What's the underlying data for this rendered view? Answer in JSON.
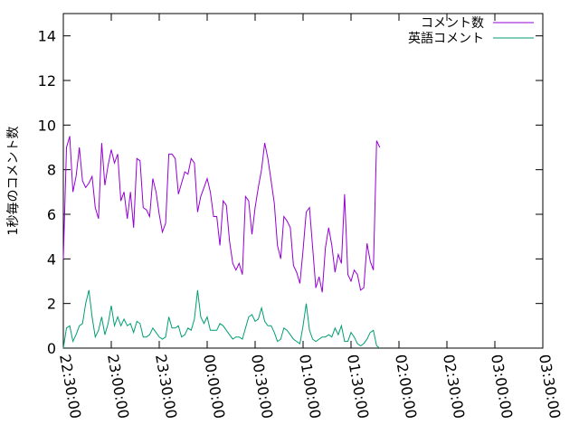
{
  "chart_data": {
    "type": "line",
    "title": "",
    "xlabel": "",
    "ylabel": "1秒毎のコメント数",
    "xlim": [
      "22:30:00",
      "03:30:00"
    ],
    "ylim": [
      0,
      15
    ],
    "yticks": [
      0,
      2,
      4,
      6,
      8,
      10,
      12,
      14
    ],
    "xticks": [
      "22:30:00",
      "23:00:00",
      "23:30:00",
      "00:00:00",
      "00:30:00",
      "01:00:00",
      "01:30:00",
      "02:00:00",
      "02:30:00",
      "03:00:00",
      "03:30:00"
    ],
    "grid": false,
    "legend_position": "top-right",
    "series": [
      {
        "name": "コメント数",
        "color": "#9400d3",
        "points": [
          [
            "22:30:00",
            4.0
          ],
          [
            "22:32:00",
            9.0
          ],
          [
            "22:34:00",
            9.5
          ],
          [
            "22:36:00",
            7.0
          ],
          [
            "22:38:00",
            7.7
          ],
          [
            "22:40:00",
            9.0
          ],
          [
            "22:42:00",
            7.5
          ],
          [
            "22:44:00",
            7.2
          ],
          [
            "22:46:00",
            7.4
          ],
          [
            "22:48:00",
            7.7
          ],
          [
            "22:50:00",
            6.3
          ],
          [
            "22:52:00",
            5.8
          ],
          [
            "22:54:00",
            9.2
          ],
          [
            "22:56:00",
            7.3
          ],
          [
            "22:58:00",
            8.2
          ],
          [
            "23:00:00",
            8.9
          ],
          [
            "23:02:00",
            8.3
          ],
          [
            "23:04:00",
            8.7
          ],
          [
            "23:06:00",
            6.6
          ],
          [
            "23:08:00",
            7.0
          ],
          [
            "23:10:00",
            5.8
          ],
          [
            "23:12:00",
            7.0
          ],
          [
            "23:14:00",
            5.4
          ],
          [
            "23:16:00",
            8.5
          ],
          [
            "23:18:00",
            8.4
          ],
          [
            "23:20:00",
            6.3
          ],
          [
            "23:22:00",
            6.2
          ],
          [
            "23:24:00",
            5.9
          ],
          [
            "23:26:00",
            7.6
          ],
          [
            "23:28:00",
            7.0
          ],
          [
            "23:30:00",
            6.0
          ],
          [
            "23:32:00",
            5.2
          ],
          [
            "23:34:00",
            5.6
          ],
          [
            "23:36:00",
            8.7
          ],
          [
            "23:38:00",
            8.7
          ],
          [
            "23:40:00",
            8.5
          ],
          [
            "23:42:00",
            6.9
          ],
          [
            "23:44:00",
            7.4
          ],
          [
            "23:46:00",
            7.9
          ],
          [
            "23:48:00",
            7.8
          ],
          [
            "23:50:00",
            8.5
          ],
          [
            "23:52:00",
            8.3
          ],
          [
            "23:54:00",
            6.1
          ],
          [
            "23:56:00",
            6.8
          ],
          [
            "23:58:00",
            7.2
          ],
          [
            "00:00:00",
            7.6
          ],
          [
            "00:02:00",
            7.0
          ],
          [
            "00:04:00",
            5.9
          ],
          [
            "00:06:00",
            5.9
          ],
          [
            "00:08:00",
            4.6
          ],
          [
            "00:10:00",
            6.6
          ],
          [
            "00:12:00",
            6.4
          ],
          [
            "00:14:00",
            4.8
          ],
          [
            "00:16:00",
            3.8
          ],
          [
            "00:18:00",
            3.5
          ],
          [
            "00:20:00",
            3.8
          ],
          [
            "00:22:00",
            3.3
          ],
          [
            "00:24:00",
            6.8
          ],
          [
            "00:26:00",
            6.6
          ],
          [
            "00:28:00",
            5.1
          ],
          [
            "00:30:00",
            6.3
          ],
          [
            "00:32:00",
            7.2
          ],
          [
            "00:34:00",
            8.0
          ],
          [
            "00:36:00",
            9.2
          ],
          [
            "00:38:00",
            8.5
          ],
          [
            "00:40:00",
            7.5
          ],
          [
            "00:42:00",
            6.5
          ],
          [
            "00:44:00",
            4.6
          ],
          [
            "00:46:00",
            4.0
          ],
          [
            "00:48:00",
            5.9
          ],
          [
            "00:50:00",
            5.7
          ],
          [
            "00:52:00",
            5.4
          ],
          [
            "00:54:00",
            3.7
          ],
          [
            "00:56:00",
            3.4
          ],
          [
            "00:58:00",
            2.9
          ],
          [
            "01:00:00",
            4.4
          ],
          [
            "01:02:00",
            6.1
          ],
          [
            "01:04:00",
            6.3
          ],
          [
            "01:06:00",
            4.5
          ],
          [
            "01:08:00",
            2.7
          ],
          [
            "01:10:00",
            3.2
          ],
          [
            "01:12:00",
            2.5
          ],
          [
            "01:14:00",
            4.5
          ],
          [
            "01:16:00",
            5.4
          ],
          [
            "01:18:00",
            4.6
          ],
          [
            "01:20:00",
            3.4
          ],
          [
            "01:22:00",
            4.2
          ],
          [
            "01:24:00",
            3.8
          ],
          [
            "01:26:00",
            6.9
          ],
          [
            "01:28:00",
            3.3
          ],
          [
            "01:30:00",
            3.0
          ],
          [
            "01:32:00",
            3.5
          ],
          [
            "01:34:00",
            3.3
          ],
          [
            "01:36:00",
            2.6
          ],
          [
            "01:38:00",
            2.7
          ],
          [
            "01:40:00",
            4.7
          ],
          [
            "01:42:00",
            3.9
          ],
          [
            "01:44:00",
            3.5
          ],
          [
            "01:46:00",
            9.3
          ],
          [
            "01:48:00",
            9.0
          ]
        ]
      },
      {
        "name": "英語コメント",
        "color": "#009e73",
        "points": [
          [
            "22:30:00",
            0.0
          ],
          [
            "22:32:00",
            0.9
          ],
          [
            "22:34:00",
            1.0
          ],
          [
            "22:36:00",
            0.3
          ],
          [
            "22:38:00",
            0.6
          ],
          [
            "22:40:00",
            1.0
          ],
          [
            "22:42:00",
            1.1
          ],
          [
            "22:44:00",
            2.0
          ],
          [
            "22:46:00",
            2.6
          ],
          [
            "22:48:00",
            1.4
          ],
          [
            "22:50:00",
            0.5
          ],
          [
            "22:52:00",
            0.8
          ],
          [
            "22:54:00",
            1.4
          ],
          [
            "22:56:00",
            0.6
          ],
          [
            "22:58:00",
            1.1
          ],
          [
            "23:00:00",
            1.9
          ],
          [
            "23:02:00",
            1.0
          ],
          [
            "23:04:00",
            1.4
          ],
          [
            "23:06:00",
            1.0
          ],
          [
            "23:08:00",
            1.3
          ],
          [
            "23:10:00",
            1.0
          ],
          [
            "23:12:00",
            1.1
          ],
          [
            "23:14:00",
            0.7
          ],
          [
            "23:16:00",
            1.2
          ],
          [
            "23:18:00",
            1.1
          ],
          [
            "23:20:00",
            0.5
          ],
          [
            "23:22:00",
            0.5
          ],
          [
            "23:24:00",
            0.6
          ],
          [
            "23:26:00",
            0.9
          ],
          [
            "23:28:00",
            0.7
          ],
          [
            "23:30:00",
            0.5
          ],
          [
            "23:32:00",
            0.4
          ],
          [
            "23:34:00",
            0.5
          ],
          [
            "23:36:00",
            1.4
          ],
          [
            "23:38:00",
            0.9
          ],
          [
            "23:40:00",
            0.9
          ],
          [
            "23:42:00",
            1.0
          ],
          [
            "23:44:00",
            0.5
          ],
          [
            "23:46:00",
            0.6
          ],
          [
            "23:48:00",
            0.9
          ],
          [
            "23:50:00",
            0.8
          ],
          [
            "23:52:00",
            1.3
          ],
          [
            "23:54:00",
            2.6
          ],
          [
            "23:56:00",
            1.4
          ],
          [
            "23:58:00",
            1.1
          ],
          [
            "00:00:00",
            1.4
          ],
          [
            "00:02:00",
            0.8
          ],
          [
            "00:04:00",
            0.8
          ],
          [
            "00:06:00",
            0.8
          ],
          [
            "00:08:00",
            1.1
          ],
          [
            "00:10:00",
            1.0
          ],
          [
            "00:12:00",
            0.8
          ],
          [
            "00:14:00",
            0.6
          ],
          [
            "00:16:00",
            0.4
          ],
          [
            "00:18:00",
            0.5
          ],
          [
            "00:20:00",
            0.5
          ],
          [
            "00:22:00",
            0.4
          ],
          [
            "00:24:00",
            0.9
          ],
          [
            "00:26:00",
            1.4
          ],
          [
            "00:28:00",
            1.5
          ],
          [
            "00:30:00",
            1.2
          ],
          [
            "00:32:00",
            1.3
          ],
          [
            "00:34:00",
            1.8
          ],
          [
            "00:36:00",
            1.2
          ],
          [
            "00:38:00",
            1.0
          ],
          [
            "00:40:00",
            1.0
          ],
          [
            "00:42:00",
            0.7
          ],
          [
            "00:44:00",
            0.3
          ],
          [
            "00:46:00",
            0.4
          ],
          [
            "00:48:00",
            0.9
          ],
          [
            "00:50:00",
            0.8
          ],
          [
            "00:52:00",
            0.6
          ],
          [
            "00:54:00",
            0.4
          ],
          [
            "00:56:00",
            0.3
          ],
          [
            "00:58:00",
            0.2
          ],
          [
            "01:00:00",
            1.0
          ],
          [
            "01:02:00",
            2.0
          ],
          [
            "01:04:00",
            0.8
          ],
          [
            "01:06:00",
            0.4
          ],
          [
            "01:08:00",
            0.3
          ],
          [
            "01:10:00",
            0.4
          ],
          [
            "01:12:00",
            0.5
          ],
          [
            "01:14:00",
            0.5
          ],
          [
            "01:16:00",
            0.6
          ],
          [
            "01:18:00",
            0.5
          ],
          [
            "01:20:00",
            0.9
          ],
          [
            "01:22:00",
            0.6
          ],
          [
            "01:24:00",
            1.0
          ],
          [
            "01:26:00",
            0.3
          ],
          [
            "01:28:00",
            0.3
          ],
          [
            "01:30:00",
            0.7
          ],
          [
            "01:32:00",
            0.5
          ],
          [
            "01:34:00",
            0.2
          ],
          [
            "01:36:00",
            0.1
          ],
          [
            "01:38:00",
            0.2
          ],
          [
            "01:40:00",
            0.4
          ],
          [
            "01:42:00",
            0.7
          ],
          [
            "01:44:00",
            0.8
          ],
          [
            "01:46:00",
            0.1
          ],
          [
            "01:48:00",
            0.0
          ]
        ]
      }
    ]
  }
}
